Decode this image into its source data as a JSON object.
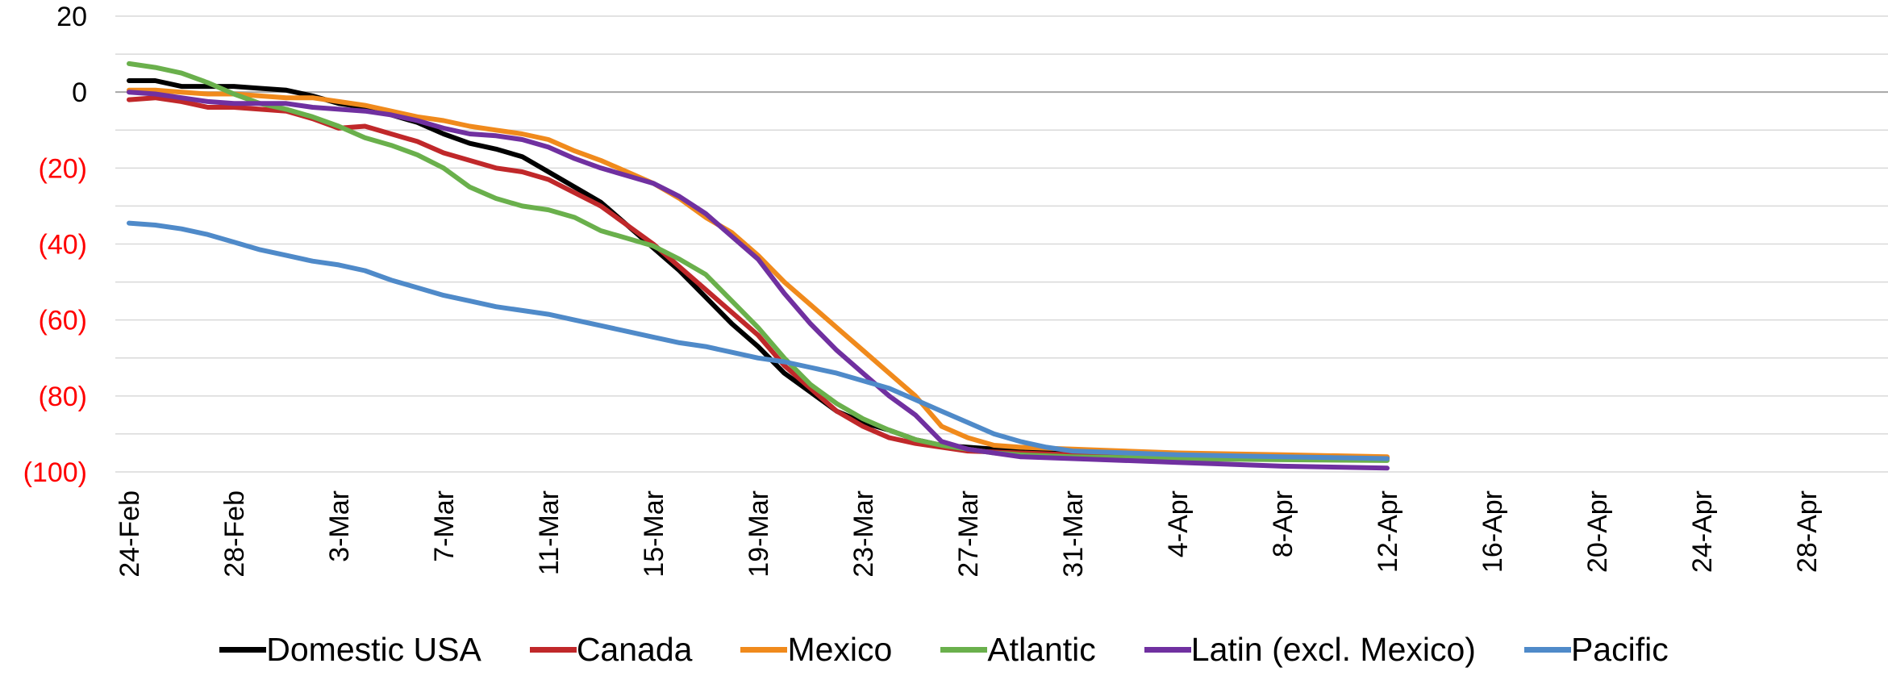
{
  "chart_data": {
    "type": "line",
    "title": "",
    "xlabel": "",
    "ylabel": "",
    "ylim": [
      -100,
      20
    ],
    "y_ticks": [
      {
        "value": 20,
        "label": "20",
        "color": "#000000"
      },
      {
        "value": 0,
        "label": "0",
        "color": "#000000"
      },
      {
        "value": -20,
        "label": "(20)",
        "color": "#ff0000"
      },
      {
        "value": -40,
        "label": "(40)",
        "color": "#ff0000"
      },
      {
        "value": -60,
        "label": "(60)",
        "color": "#ff0000"
      },
      {
        "value": -80,
        "label": "(80)",
        "color": "#ff0000"
      },
      {
        "value": -100,
        "label": "(100)",
        "color": "#ff0000"
      }
    ],
    "x_ticks": [
      "24-Feb",
      "28-Feb",
      "3-Mar",
      "7-Mar",
      "11-Mar",
      "15-Mar",
      "19-Mar",
      "23-Mar",
      "27-Mar",
      "31-Mar",
      "4-Apr",
      "8-Apr",
      "12-Apr",
      "16-Apr",
      "20-Apr",
      "24-Apr",
      "28-Apr"
    ],
    "x_range_days": [
      0,
      64
    ],
    "legend_position": "bottom",
    "grid": true,
    "series": [
      {
        "name": "Domestic USA",
        "color": "#000000",
        "points": [
          [
            0,
            3
          ],
          [
            1,
            3
          ],
          [
            2,
            1.5
          ],
          [
            3,
            1.5
          ],
          [
            4,
            1.5
          ],
          [
            5,
            1
          ],
          [
            6,
            0.5
          ],
          [
            7,
            -1
          ],
          [
            8,
            -3
          ],
          [
            9,
            -4
          ],
          [
            10,
            -6
          ],
          [
            11,
            -8
          ],
          [
            12,
            -11
          ],
          [
            13,
            -13.5
          ],
          [
            14,
            -15
          ],
          [
            15,
            -17
          ],
          [
            16,
            -21
          ],
          [
            17,
            -25
          ],
          [
            18,
            -29
          ],
          [
            19,
            -35
          ],
          [
            20,
            -41
          ],
          [
            21,
            -47
          ],
          [
            22,
            -54
          ],
          [
            23,
            -61
          ],
          [
            24,
            -67
          ],
          [
            25,
            -74
          ],
          [
            26,
            -79
          ],
          [
            27,
            -84
          ],
          [
            28,
            -87
          ],
          [
            29,
            -89
          ],
          [
            30,
            -91.5
          ],
          [
            31,
            -93
          ],
          [
            32,
            -93.5
          ],
          [
            33,
            -94
          ],
          [
            34,
            -94.5
          ],
          [
            36,
            -95
          ],
          [
            40,
            -95.5
          ],
          [
            44,
            -96
          ],
          [
            48,
            -96.2
          ]
        ]
      },
      {
        "name": "Canada",
        "color": "#c0282a",
        "points": [
          [
            0,
            -2
          ],
          [
            1,
            -1.5
          ],
          [
            2,
            -2.5
          ],
          [
            3,
            -4
          ],
          [
            4,
            -4
          ],
          [
            5,
            -4.5
          ],
          [
            6,
            -5
          ],
          [
            7,
            -7
          ],
          [
            8,
            -9.5
          ],
          [
            9,
            -9
          ],
          [
            10,
            -11
          ],
          [
            11,
            -13
          ],
          [
            12,
            -16
          ],
          [
            13,
            -18
          ],
          [
            14,
            -20
          ],
          [
            15,
            -21
          ],
          [
            16,
            -23
          ],
          [
            17,
            -26.5
          ],
          [
            18,
            -30
          ],
          [
            19,
            -35
          ],
          [
            20,
            -40
          ],
          [
            21,
            -46
          ],
          [
            22,
            -52
          ],
          [
            23,
            -58
          ],
          [
            24,
            -64
          ],
          [
            25,
            -72
          ],
          [
            26,
            -78
          ],
          [
            27,
            -84
          ],
          [
            28,
            -88
          ],
          [
            29,
            -91
          ],
          [
            30,
            -92.5
          ],
          [
            31,
            -93.5
          ],
          [
            32,
            -94.5
          ],
          [
            34,
            -95
          ],
          [
            36,
            -95.5
          ],
          [
            40,
            -96
          ],
          [
            44,
            -96.2
          ],
          [
            48,
            -96.5
          ]
        ]
      },
      {
        "name": "Mexico",
        "color": "#f08a1c",
        "points": [
          [
            0,
            0.5
          ],
          [
            1,
            0.5
          ],
          [
            2,
            0
          ],
          [
            3,
            -0.5
          ],
          [
            4,
            -0.5
          ],
          [
            5,
            -1
          ],
          [
            6,
            -1.5
          ],
          [
            7,
            -1.5
          ],
          [
            8,
            -2.5
          ],
          [
            9,
            -3.5
          ],
          [
            10,
            -5
          ],
          [
            11,
            -6.5
          ],
          [
            12,
            -7.5
          ],
          [
            13,
            -9
          ],
          [
            14,
            -10
          ],
          [
            15,
            -11
          ],
          [
            16,
            -12.5
          ],
          [
            17,
            -15.5
          ],
          [
            18,
            -18
          ],
          [
            19,
            -21
          ],
          [
            20,
            -24
          ],
          [
            21,
            -28
          ],
          [
            22,
            -33
          ],
          [
            23,
            -37
          ],
          [
            24,
            -43
          ],
          [
            25,
            -50
          ],
          [
            26,
            -56
          ],
          [
            27,
            -62
          ],
          [
            28,
            -68
          ],
          [
            29,
            -74
          ],
          [
            30,
            -80
          ],
          [
            31,
            -88
          ],
          [
            32,
            -91
          ],
          [
            33,
            -93
          ],
          [
            34,
            -93.5
          ],
          [
            36,
            -94
          ],
          [
            40,
            -95
          ],
          [
            44,
            -95.5
          ],
          [
            48,
            -96
          ]
        ]
      },
      {
        "name": "Atlantic",
        "color": "#6ab04c",
        "points": [
          [
            0,
            7.5
          ],
          [
            1,
            6.5
          ],
          [
            2,
            5
          ],
          [
            3,
            2.5
          ],
          [
            4,
            -0.5
          ],
          [
            5,
            -3
          ],
          [
            6,
            -4.5
          ],
          [
            7,
            -6.5
          ],
          [
            8,
            -9
          ],
          [
            9,
            -12
          ],
          [
            10,
            -14
          ],
          [
            11,
            -16.5
          ],
          [
            12,
            -20
          ],
          [
            13,
            -25
          ],
          [
            14,
            -28
          ],
          [
            15,
            -30
          ],
          [
            16,
            -31
          ],
          [
            17,
            -33
          ],
          [
            18,
            -36.5
          ],
          [
            19,
            -38.5
          ],
          [
            20,
            -40.5
          ],
          [
            21,
            -44
          ],
          [
            22,
            -48
          ],
          [
            23,
            -55
          ],
          [
            24,
            -62
          ],
          [
            25,
            -70
          ],
          [
            26,
            -77
          ],
          [
            27,
            -82
          ],
          [
            28,
            -86
          ],
          [
            29,
            -89
          ],
          [
            30,
            -91.5
          ],
          [
            31,
            -93
          ],
          [
            32,
            -94
          ],
          [
            33,
            -95
          ],
          [
            34,
            -95.5
          ],
          [
            36,
            -96
          ],
          [
            40,
            -96.5
          ],
          [
            44,
            -96.8
          ],
          [
            48,
            -97
          ]
        ]
      },
      {
        "name": "Latin (excl. Mexico)",
        "color": "#7030a0",
        "points": [
          [
            0,
            0
          ],
          [
            1,
            -0.5
          ],
          [
            2,
            -1.5
          ],
          [
            3,
            -2.5
          ],
          [
            4,
            -3
          ],
          [
            5,
            -3
          ],
          [
            6,
            -3
          ],
          [
            7,
            -4
          ],
          [
            8,
            -4.5
          ],
          [
            9,
            -5
          ],
          [
            10,
            -6
          ],
          [
            11,
            -7.5
          ],
          [
            12,
            -9.5
          ],
          [
            13,
            -11
          ],
          [
            14,
            -11.5
          ],
          [
            15,
            -12.5
          ],
          [
            16,
            -14.5
          ],
          [
            17,
            -17.5
          ],
          [
            18,
            -20
          ],
          [
            19,
            -22
          ],
          [
            20,
            -24
          ],
          [
            21,
            -27.5
          ],
          [
            22,
            -32
          ],
          [
            23,
            -38
          ],
          [
            24,
            -44
          ],
          [
            25,
            -53
          ],
          [
            26,
            -61
          ],
          [
            27,
            -68
          ],
          [
            28,
            -74
          ],
          [
            29,
            -80
          ],
          [
            30,
            -85
          ],
          [
            31,
            -92
          ],
          [
            32,
            -94
          ],
          [
            33,
            -95
          ],
          [
            34,
            -96
          ],
          [
            36,
            -96.5
          ],
          [
            40,
            -97.5
          ],
          [
            44,
            -98.5
          ],
          [
            48,
            -99
          ]
        ]
      },
      {
        "name": "Pacific",
        "color": "#4f8ac9",
        "points": [
          [
            0,
            -34.5
          ],
          [
            1,
            -35
          ],
          [
            2,
            -36
          ],
          [
            3,
            -37.5
          ],
          [
            4,
            -39.5
          ],
          [
            5,
            -41.5
          ],
          [
            6,
            -43
          ],
          [
            7,
            -44.5
          ],
          [
            8,
            -45.5
          ],
          [
            9,
            -47
          ],
          [
            10,
            -49.5
          ],
          [
            11,
            -51.5
          ],
          [
            12,
            -53.5
          ],
          [
            13,
            -55
          ],
          [
            14,
            -56.5
          ],
          [
            15,
            -57.5
          ],
          [
            16,
            -58.5
          ],
          [
            17,
            -60
          ],
          [
            18,
            -61.5
          ],
          [
            19,
            -63
          ],
          [
            20,
            -64.5
          ],
          [
            21,
            -66
          ],
          [
            22,
            -67
          ],
          [
            23,
            -68.5
          ],
          [
            24,
            -70
          ],
          [
            25,
            -71
          ],
          [
            26,
            -72.5
          ],
          [
            27,
            -74
          ],
          [
            28,
            -76
          ],
          [
            29,
            -78
          ],
          [
            30,
            -81
          ],
          [
            31,
            -84
          ],
          [
            32,
            -87
          ],
          [
            33,
            -90
          ],
          [
            34,
            -92
          ],
          [
            35,
            -93.5
          ],
          [
            36,
            -94.5
          ],
          [
            40,
            -95.5
          ],
          [
            44,
            -96
          ],
          [
            48,
            -96.5
          ]
        ]
      }
    ]
  }
}
